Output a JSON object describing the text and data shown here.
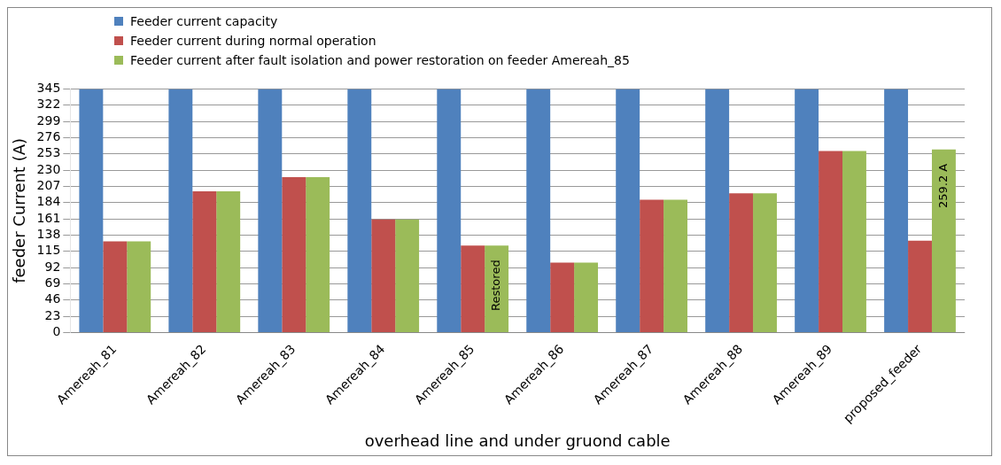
{
  "chart_data": {
    "type": "bar",
    "xlabel": "overhead line and under gruond cable",
    "ylabel": "feeder Current (A)",
    "categories": [
      "Amereah_81",
      "Amereah_82",
      "Amereah_83",
      "Amereah_84",
      "Amereah_85",
      "Amereah_86",
      "Amereah_87",
      "Amereah_88",
      "Amereah_89",
      "proposed_feeder"
    ],
    "series": [
      {
        "name": "Feeder current capacity",
        "color": "#4f81bd",
        "values": [
          345,
          345,
          345,
          345,
          345,
          345,
          345,
          345,
          345,
          345
        ]
      },
      {
        "name": "Feeder current during normal operation",
        "color": "#c0504d",
        "values": [
          129,
          200,
          220,
          160,
          123,
          99,
          188,
          197,
          257,
          130
        ]
      },
      {
        "name": "Feeder current after fault isolation and power restoration on feeder Amereah_85",
        "color": "#9bbb59",
        "values": [
          129,
          200,
          220,
          160,
          123,
          99,
          188,
          197,
          257,
          259.2
        ],
        "value_labels": [
          null,
          null,
          null,
          null,
          "Restored",
          null,
          null,
          null,
          null,
          "259.2 A"
        ]
      }
    ],
    "ylim": [
      0,
      345
    ],
    "yticks": [
      0,
      23,
      46,
      69,
      92,
      115,
      138,
      161,
      184,
      207,
      230,
      253,
      276,
      299,
      322,
      345
    ],
    "grid": "y",
    "legend": "top left"
  }
}
